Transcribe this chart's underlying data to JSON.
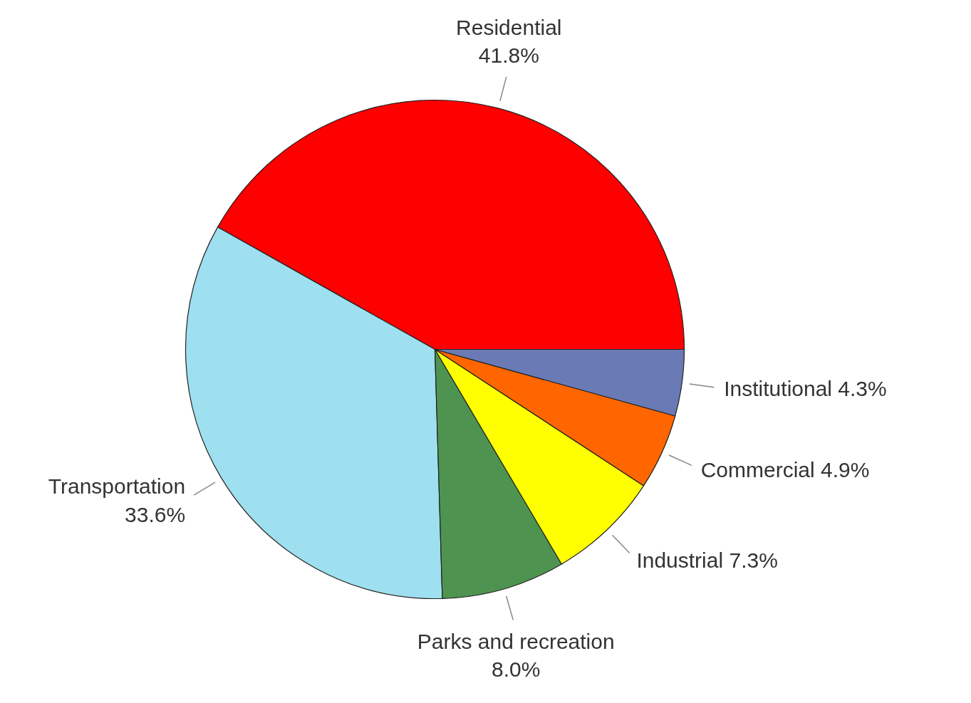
{
  "chart_data": {
    "type": "pie",
    "categories": [
      "Residential",
      "Transportation",
      "Parks and recreation",
      "Industrial",
      "Commercial",
      "Institutional"
    ],
    "values": [
      41.8,
      33.6,
      8.0,
      7.3,
      4.9,
      4.3
    ],
    "colors": [
      "#ff0000",
      "#9edff0",
      "#4e9450",
      "#ffff00",
      "#ff6600",
      "#6a7ab5"
    ],
    "value_labels": [
      "41.8%",
      "33.6%",
      "8.0%",
      "7.3%",
      "4.9%",
      "4.3%"
    ]
  }
}
